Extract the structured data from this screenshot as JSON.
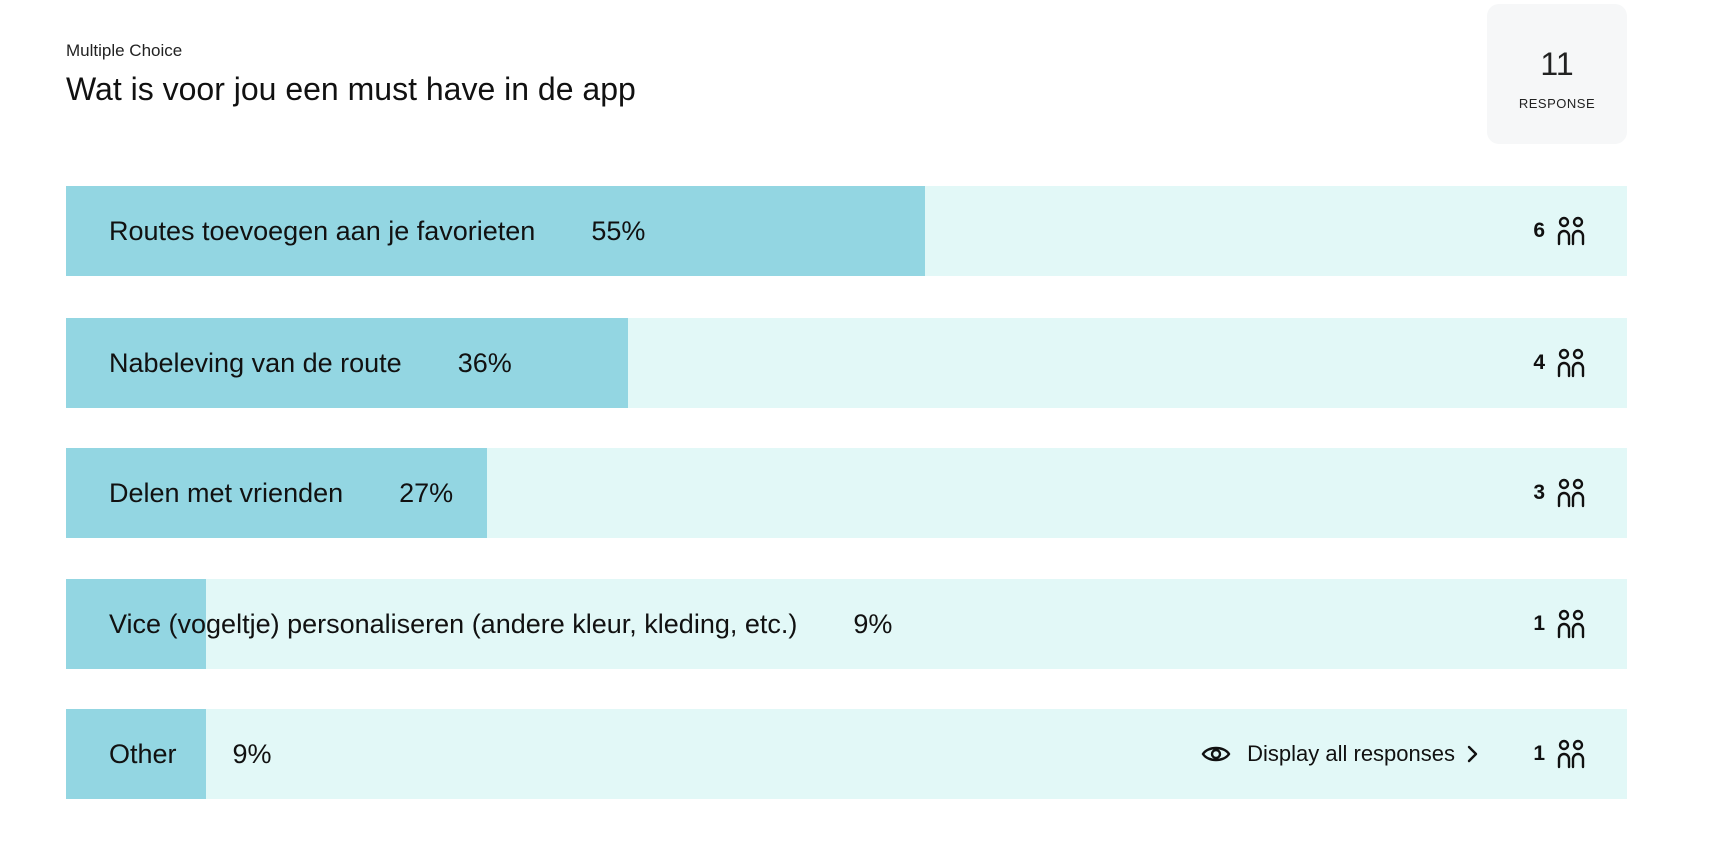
{
  "question": {
    "type_label": "Multiple Choice",
    "title": "Wat is voor jou een must have in de app"
  },
  "responses": {
    "count": "11",
    "label": "RESPONSE"
  },
  "options": [
    {
      "label": "Routes toevoegen aan je favorieten",
      "percent": "55%",
      "count": "6",
      "fill": 0.55
    },
    {
      "label": "Nabeleving van de route",
      "percent": "36%",
      "count": "4",
      "fill": 0.36
    },
    {
      "label": "Delen met vrienden",
      "percent": "27%",
      "count": "3",
      "fill": 0.27
    },
    {
      "label": "Vice (vogeltje) personaliseren (andere kleur, kleding, etc.)",
      "percent": "9%",
      "count": "1",
      "fill": 0.09
    },
    {
      "label": "Other",
      "percent": "9%",
      "count": "1",
      "fill": 0.09,
      "action": "Display all responses"
    }
  ],
  "colors": {
    "bar_fill": "#93d6e2",
    "bar_track": "#e2f8f7",
    "response_box": "#f6f7f8"
  },
  "icons": {
    "people": "people-icon",
    "eye": "eye-icon",
    "chevron": "chevron-right-icon"
  }
}
